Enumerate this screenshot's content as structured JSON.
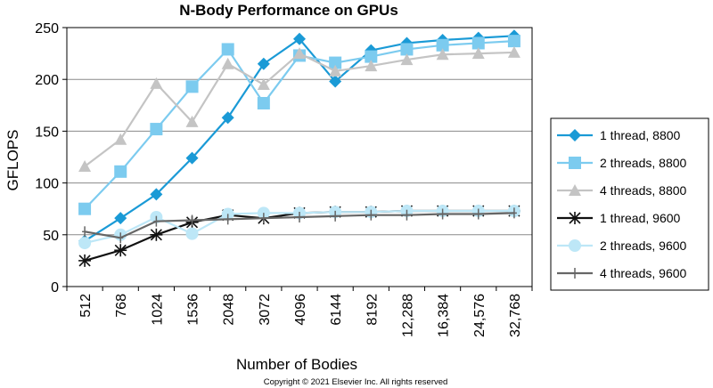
{
  "chart_data": {
    "type": "line",
    "title": "N-Body Performance on GPUs",
    "xlabel": "Number of Bodies",
    "ylabel": "GFLOPS",
    "categories": [
      "512",
      "768",
      "1024",
      "1536",
      "2048",
      "3072",
      "4096",
      "6144",
      "8192",
      "12,288",
      "16,384",
      "24,576",
      "32,768"
    ],
    "ylim": [
      0,
      250
    ],
    "yticks": [
      0,
      50,
      100,
      150,
      200,
      250
    ],
    "grid": "horizontal",
    "legend_position": "right",
    "series": [
      {
        "name": "1 thread, 8800",
        "color": "#1a9ad6",
        "marker": "diamond",
        "values": [
          44,
          66,
          89,
          124,
          163,
          215,
          239,
          198,
          228,
          235,
          238,
          240,
          242
        ]
      },
      {
        "name": "2 threads, 8800",
        "color": "#7ccbef",
        "marker": "square",
        "values": [
          75,
          111,
          152,
          193,
          229,
          177,
          223,
          216,
          222,
          229,
          233,
          235,
          237
        ]
      },
      {
        "name": "4 threads, 8800",
        "color": "#c4c4c4",
        "marker": "triangle",
        "values": [
          116,
          142,
          196,
          159,
          215,
          195,
          225,
          208,
          213,
          219,
          224,
          225,
          226
        ]
      },
      {
        "name": "1 thread, 9600",
        "color": "#111111",
        "marker": "asterisk",
        "values": [
          25,
          35,
          50,
          62,
          69,
          66,
          71,
          72,
          72,
          73,
          73,
          73,
          73
        ]
      },
      {
        "name": "2 threads, 9600",
        "color": "#bde7f7",
        "marker": "circle",
        "values": [
          42,
          50,
          67,
          51,
          70,
          71,
          71,
          72,
          72,
          73,
          73,
          73,
          73
        ]
      },
      {
        "name": "4 threads, 9600",
        "color": "#666666",
        "marker": "plus",
        "values": [
          53,
          47,
          63,
          64,
          65,
          66,
          67,
          68,
          69,
          69,
          70,
          70,
          71
        ]
      }
    ]
  },
  "copyright": "Copyright © 2021 Elsevier Inc. All rights reserved"
}
